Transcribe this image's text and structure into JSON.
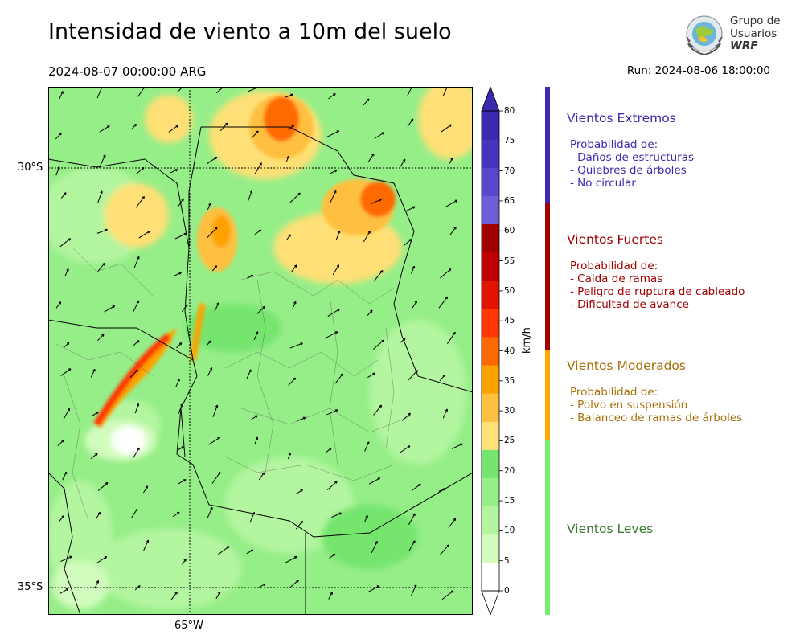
{
  "title": "Intensidad de viento a 10m del suelo",
  "valid_time": "2024-08-07 00:00:00 ARG",
  "run": "Run: 2024-08-06 18:00:00",
  "logo": {
    "lines": [
      "Grupo de",
      "Usuarios",
      "WRF"
    ]
  },
  "map": {
    "lat_labels": [
      "30°S",
      "35°S"
    ],
    "lon_labels": [
      "65°W"
    ]
  },
  "colorbar": {
    "unit": "km/h",
    "ticks": [
      "0",
      "5",
      "10",
      "15",
      "20",
      "25",
      "30",
      "35",
      "40",
      "45",
      "50",
      "55",
      "60",
      "65",
      "70",
      "75",
      "80"
    ],
    "colors": [
      "#ffffff",
      "#d2fcbe",
      "#b4f5a0",
      "#96ee88",
      "#74e56e",
      "#ffe076",
      "#ffc040",
      "#ffa200",
      "#ff6a00",
      "#ff3800",
      "#e01400",
      "#c00000",
      "#a00000",
      "#6e5fd8",
      "#5848cc",
      "#4434be",
      "#3a2ab0"
    ]
  },
  "categories": [
    {
      "title": "Vientos Extremos",
      "color": "#3a2bb0",
      "desc": [
        "Probabilidad de:",
        "- Daños de estructuras",
        "- Quiebres de árboles",
        "- No circular"
      ]
    },
    {
      "title": "Vientos Fuertes",
      "color": "#a00000",
      "desc": [
        "Probabilidad de:",
        "- Caida de ramas",
        "- Peligro de ruptura de cableado",
        "- Dificultad de avance"
      ]
    },
    {
      "title": "Vientos Moderados",
      "color": "#a8700a",
      "bar_color": "#ffa500",
      "desc": [
        "Probabilidad de:",
        "- Polvo en suspensión",
        "- Balanceo de ramas de árboles"
      ]
    },
    {
      "title": "Vientos Leves",
      "color": "#3a7a2e",
      "bar_color": "#74ee6c",
      "desc": []
    }
  ]
}
